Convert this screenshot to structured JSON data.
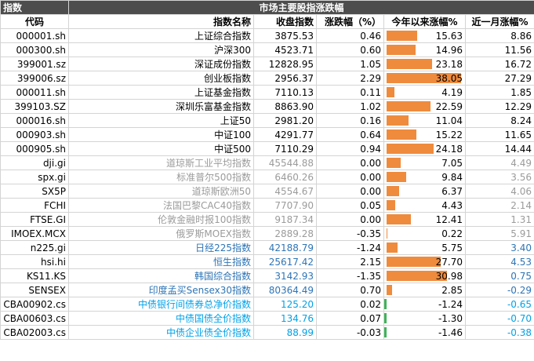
{
  "header": {
    "group": "指数",
    "title": "市场主要股指涨跌幅"
  },
  "columns": [
    "代码",
    "指数名称",
    "收盘指数",
    "涨跌幅（%）",
    "今年以来涨幅%",
    "近一月涨幅%"
  ],
  "colors": {
    "a_share": "#000000",
    "global": "#9b9b9b",
    "asia": "#2e75b6",
    "bond": "#00a2e8",
    "bar_up": "#ef8b3d",
    "bar_down": "#3fb35a"
  },
  "rows": [
    {
      "code": "000001.sh",
      "name": "上证综合指数",
      "close": "3875.53",
      "change": "0.46",
      "ytd": "15.63",
      "month": "8.86",
      "group": "a_share"
    },
    {
      "code": "000300.sh",
      "name": "沪深300",
      "close": "4523.71",
      "change": "0.60",
      "ytd": "14.96",
      "month": "11.56",
      "group": "a_share"
    },
    {
      "code": "399001.sz",
      "name": "深证成份指数",
      "close": "12828.95",
      "change": "1.05",
      "ytd": "23.18",
      "month": "16.72",
      "group": "a_share"
    },
    {
      "code": "399006.sz",
      "name": "创业板指数",
      "close": "2956.37",
      "change": "2.29",
      "ytd": "38.05",
      "month": "27.29",
      "group": "a_share"
    },
    {
      "code": "000011.sh",
      "name": "上证基金指数",
      "close": "7110.13",
      "change": "0.11",
      "ytd": "4.19",
      "month": "1.85",
      "group": "a_share"
    },
    {
      "code": "399103.SZ",
      "name": "深圳乐富基金指数",
      "close": "8863.90",
      "change": "1.02",
      "ytd": "22.59",
      "month": "12.29",
      "group": "a_share"
    },
    {
      "code": "000016.sh",
      "name": "上证50",
      "close": "2981.20",
      "change": "0.16",
      "ytd": "11.04",
      "month": "8.24",
      "group": "a_share"
    },
    {
      "code": "000903.sh",
      "name": "中证100",
      "close": "4291.77",
      "change": "0.64",
      "ytd": "15.22",
      "month": "11.65",
      "group": "a_share"
    },
    {
      "code": "000905.sh",
      "name": "中证500",
      "close": "7110.29",
      "change": "0.94",
      "ytd": "24.18",
      "month": "14.44",
      "group": "a_share"
    },
    {
      "code": "dji.gi",
      "name": "道琼斯工业平均指数",
      "close": "45544.88",
      "change": "0.00",
      "ytd": "7.05",
      "month": "4.49",
      "group": "global"
    },
    {
      "code": "spx.gi",
      "name": "标准普尔500指数",
      "close": "6460.26",
      "change": "0.00",
      "ytd": "9.84",
      "month": "3.56",
      "group": "global"
    },
    {
      "code": "SX5P",
      "name": "道琼斯欧洲50",
      "close": "4554.67",
      "change": "0.00",
      "ytd": "6.37",
      "month": "4.06",
      "group": "global"
    },
    {
      "code": "FCHI",
      "name": "法国巴黎CAC40指数",
      "close": "7707.90",
      "change": "0.05",
      "ytd": "4.43",
      "month": "2.14",
      "group": "global"
    },
    {
      "code": "FTSE.GI",
      "name": "伦敦金融时报100指数",
      "close": "9187.34",
      "change": "0.00",
      "ytd": "12.41",
      "month": "1.31",
      "group": "global"
    },
    {
      "code": "IMOEX.MCX",
      "name": "俄罗斯MOEX指数",
      "close": "2889.28",
      "change": "-0.35",
      "ytd": "0.22",
      "month": "5.91",
      "group": "global"
    },
    {
      "code": "n225.gi",
      "name": "日经225指数",
      "close": "42188.79",
      "change": "-1.24",
      "ytd": "5.75",
      "month": "3.40",
      "group": "asia"
    },
    {
      "code": "hsi.hi",
      "name": "恒生指数",
      "close": "25617.42",
      "change": "2.15",
      "ytd": "27.70",
      "month": "4.53",
      "group": "asia"
    },
    {
      "code": "KS11.KS",
      "name": "韩国综合指数",
      "close": "3142.93",
      "change": "-1.35",
      "ytd": "30.98",
      "month": "0.75",
      "group": "asia"
    },
    {
      "code": "SENSEX",
      "name": "印度孟买Sensex30指数",
      "close": "80364.49",
      "change": "0.70",
      "ytd": "2.85",
      "month": "-0.29",
      "group": "asia"
    },
    {
      "code": "CBA00902.cs",
      "name": "中债银行间债券总净价指数",
      "close": "125.20",
      "change": "0.02",
      "ytd": "-1.24",
      "month": "-0.65",
      "group": "bond"
    },
    {
      "code": "CBA00603.cs",
      "name": "中债国债全价指数",
      "close": "134.76",
      "change": "0.07",
      "ytd": "-1.30",
      "month": "-0.70",
      "group": "bond"
    },
    {
      "code": "CBA02003.cs",
      "name": "中债企业债全价指数",
      "close": "88.99",
      "change": "-0.03",
      "ytd": "-1.46",
      "month": "-0.38",
      "group": "bond"
    }
  ]
}
